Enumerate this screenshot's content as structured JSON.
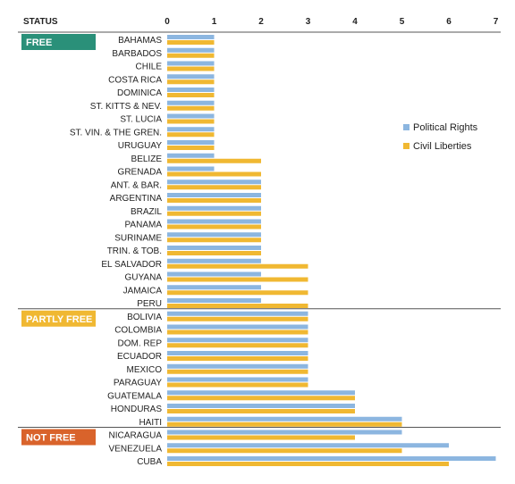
{
  "chart_data": {
    "type": "bar",
    "orientation": "horizontal",
    "header": "STATUS",
    "xlim": [
      0,
      7
    ],
    "ticks": [
      "0",
      "1",
      "2",
      "3",
      "4",
      "5",
      "6",
      "7"
    ],
    "tick_values": [
      0,
      1,
      2,
      3,
      4,
      5,
      6,
      7
    ],
    "legend_position": "right",
    "grid": false,
    "categories": [
      "BAHAMAS",
      "BARBADOS",
      "CHILE",
      "COSTA RICA",
      "DOMINICA",
      "ST. KITTS & NEV.",
      "ST. LUCIA",
      "ST. VIN. & THE GREN.",
      "URUGUAY",
      "BELIZE",
      "GRENADA",
      "ANT. & BAR.",
      "ARGENTINA",
      "BRAZIL",
      "PANAMA",
      "SURINAME",
      "TRIN. & TOB.",
      "EL SALVADOR",
      "GUYANA",
      "JAMAICA",
      "PERU",
      "BOLIVIA",
      "COLOMBIA",
      "DOM. REP",
      "ECUADOR",
      "MEXICO",
      "PARAGUAY",
      "GUATEMALA",
      "HONDURAS",
      "HAITI",
      "NICARAGUA",
      "VENEZUELA",
      "CUBA"
    ],
    "series": [
      {
        "name": "Political Rights",
        "color": "#8cb6e0",
        "values": [
          1,
          1,
          1,
          1,
          1,
          1,
          1,
          1,
          1,
          1,
          1,
          2,
          2,
          2,
          2,
          2,
          2,
          2,
          2,
          2,
          2,
          3,
          3,
          3,
          3,
          3,
          3,
          4,
          4,
          5,
          5,
          6,
          7
        ]
      },
      {
        "name": "Civil Liberties",
        "color": "#f0b832",
        "values": [
          1,
          1,
          1,
          1,
          1,
          1,
          1,
          1,
          1,
          2,
          2,
          2,
          2,
          2,
          2,
          2,
          2,
          3,
          3,
          3,
          3,
          3,
          3,
          3,
          3,
          3,
          3,
          4,
          4,
          5,
          4,
          5,
          6
        ]
      }
    ],
    "groups": [
      {
        "label": "FREE",
        "color": "#2a9079",
        "start": 0,
        "end": 20
      },
      {
        "label": "PARTLY FREE",
        "color": "#f0b832",
        "start": 21,
        "end": 29
      },
      {
        "label": "NOT FREE",
        "color": "#d9632b",
        "start": 30,
        "end": 32
      }
    ]
  }
}
